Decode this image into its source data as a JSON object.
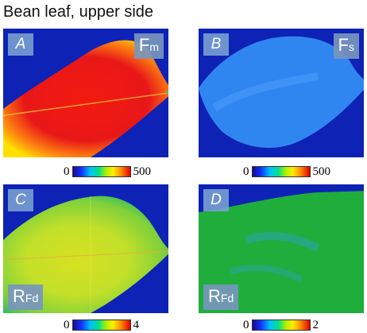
{
  "figure": {
    "title": "Bean leaf, upper side"
  },
  "panels": [
    {
      "letter": "A",
      "param": "F",
      "sub": "m",
      "scale_min": "0",
      "scale_max": "500"
    },
    {
      "letter": "B",
      "param": "F",
      "sub": "s",
      "scale_min": "0",
      "scale_max": "500"
    },
    {
      "letter": "C",
      "param": "R",
      "sub": "Fd",
      "scale_min": "0",
      "scale_max": "4"
    },
    {
      "letter": "D",
      "param": "R",
      "sub": "Fd",
      "scale_min": "0",
      "scale_max": "2"
    }
  ],
  "colors": {
    "background": "#0e22b5",
    "leaf_A": "#e81818",
    "leaf_B": "#2f86f0",
    "leaf_C": "#b9e02a",
    "leaf_D": "#1fae3c"
  }
}
